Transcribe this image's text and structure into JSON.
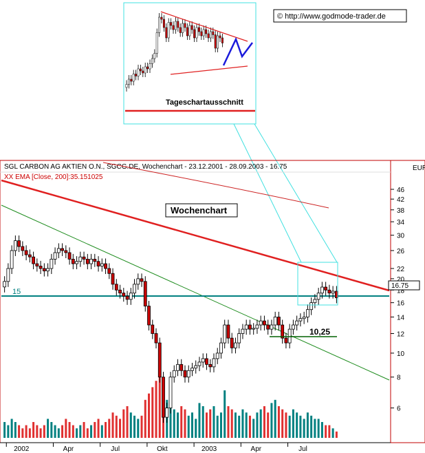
{
  "watermark": "© http://www.godmode-trader.de",
  "header": {
    "title": "SGL CARBON AG AKTIEN O.N., SGCG.DE, Wochenchart - 23.12.2001 - 28.09.2003 - 16.75",
    "ema_label": "XX EMA [Close, 200]:35.151025",
    "currency": "EUR"
  },
  "inset": {
    "label": "Tageschartausschnitt"
  },
  "annotations": {
    "main_label": "Wochenchart",
    "support_value": "15",
    "low_value": "10,25",
    "last_price": "16.75"
  },
  "colors": {
    "up_candle": "#ffffff",
    "down_candle": "#cc0000",
    "resistance": "#e02020",
    "support": "#008080",
    "trend": "#1a8a1a",
    "ema": "#cc2020",
    "volume_up": "#008080",
    "volume_down": "#e03030",
    "inset_frame": "#40e0e0"
  },
  "chart_data": {
    "type": "candlestick",
    "title": "SGL CARBON AG AKTIEN O.N., SGCG.DE, Wochenchart - 23.12.2001 - 28.09.2003 - 16.75",
    "y_scale": "log",
    "ylim": [
      4.6,
      50
    ],
    "y_ticks": [
      6,
      8,
      10,
      12,
      14,
      16,
      18,
      20,
      22,
      26,
      30,
      34,
      38,
      42,
      46
    ],
    "x_ticks": [
      "2002",
      "Apr",
      "Jul",
      "Okt",
      "2003",
      "Apr",
      "Jul"
    ],
    "x_tick_weeks": [
      1,
      14,
      27,
      40,
      53,
      66,
      79
    ],
    "weeks": 93,
    "close": [
      19.5,
      22,
      26,
      28.5,
      27,
      26,
      25,
      24.5,
      23,
      22.5,
      22,
      21.5,
      22,
      24,
      25.5,
      26.5,
      26,
      25.5,
      24,
      23,
      23.5,
      24.5,
      24,
      23,
      24,
      23.5,
      22.5,
      23,
      22,
      21,
      19,
      18,
      17.5,
      17,
      16.5,
      17.5,
      19,
      20,
      19.5,
      15.5,
      13,
      12,
      11,
      8,
      5.5,
      6,
      8,
      8.5,
      9,
      8.5,
      8,
      8.5,
      8.7,
      8.9,
      9.2,
      9.5,
      9,
      8.8,
      9.5,
      10,
      11,
      13,
      11.5,
      10.5,
      11,
      12,
      12.5,
      13,
      12.5,
      12.6,
      13,
      13.5,
      13,
      12.5,
      13,
      14,
      13,
      11.5,
      11,
      12.5,
      13,
      13.5,
      13.8,
      14,
      15,
      16,
      16.5,
      17.5,
      18.5,
      18,
      17.5,
      17.8,
      16.75
    ],
    "volume_relative": [
      0.25,
      0.2,
      0.3,
      0.25,
      0.2,
      0.15,
      0.2,
      0.15,
      0.25,
      0.2,
      0.15,
      0.2,
      0.3,
      0.25,
      0.2,
      0.15,
      0.2,
      0.3,
      0.25,
      0.2,
      0.15,
      0.2,
      0.25,
      0.15,
      0.2,
      0.25,
      0.3,
      0.2,
      0.25,
      0.3,
      0.4,
      0.35,
      0.3,
      0.45,
      0.5,
      0.4,
      0.35,
      0.3,
      0.35,
      0.6,
      0.7,
      0.8,
      0.9,
      1.0,
      0.85,
      0.6,
      0.5,
      0.45,
      0.4,
      0.5,
      0.45,
      0.35,
      0.4,
      0.3,
      0.55,
      0.5,
      0.4,
      0.45,
      0.5,
      0.35,
      0.4,
      0.75,
      0.5,
      0.45,
      0.4,
      0.35,
      0.45,
      0.4,
      0.35,
      0.3,
      0.4,
      0.45,
      0.5,
      0.4,
      0.55,
      0.6,
      0.5,
      0.45,
      0.4,
      0.35,
      0.45,
      0.4,
      0.35,
      0.3,
      0.4,
      0.35,
      0.3,
      0.3,
      0.25,
      0.2,
      0.2,
      0.15,
      0.1
    ],
    "lines": {
      "ema200_label": "XX EMA [Close, 200]:35.151025",
      "horizontal_support": 15,
      "low_mark": 10.25,
      "last": 16.75
    }
  }
}
